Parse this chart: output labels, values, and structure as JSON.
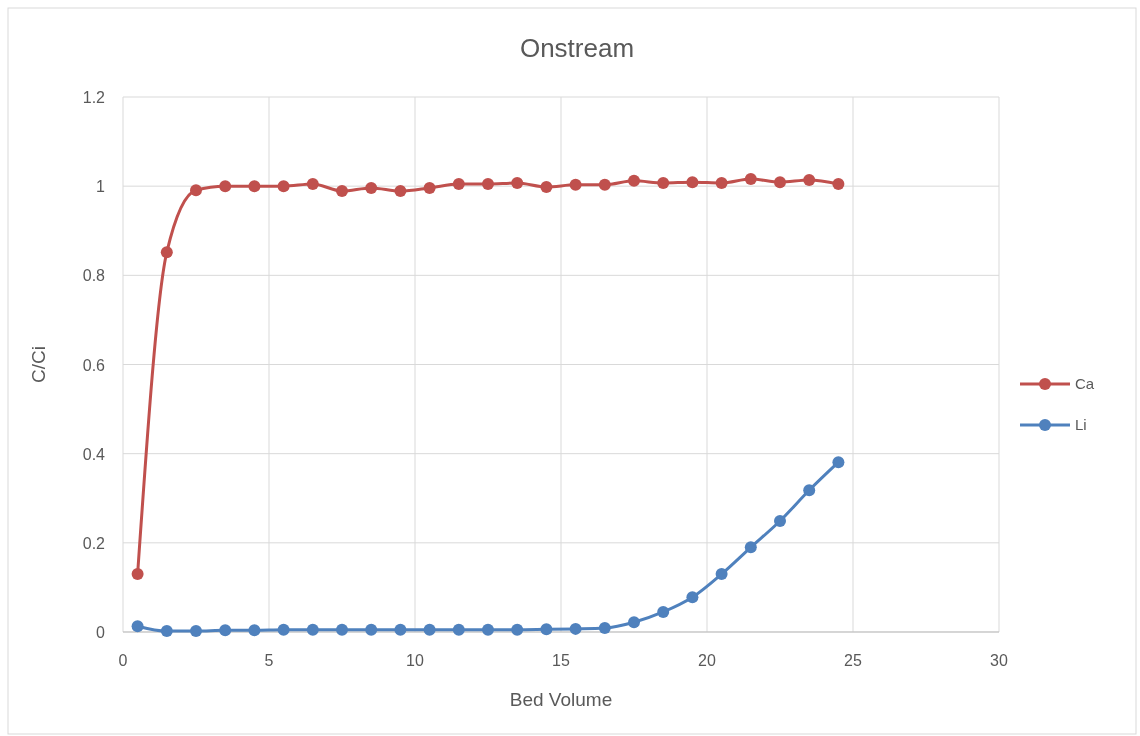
{
  "chart_data": {
    "type": "line",
    "title": "Onstream",
    "xlabel": "Bed Volume",
    "ylabel": "C/Ci",
    "x": [
      0.5,
      1.5,
      2.5,
      3.5,
      4.5,
      5.5,
      6.5,
      7.5,
      8.5,
      9.5,
      10.5,
      11.5,
      12.5,
      13.5,
      14.5,
      15.5,
      16.5,
      17.5,
      18.5,
      19.5,
      20.5,
      21.5,
      22.5,
      23.5,
      24.5
    ],
    "series": [
      {
        "name": "Ca",
        "color": "#c0504d",
        "values": [
          0.13,
          0.852,
          0.991,
          1.0,
          1.0,
          1.0,
          1.005,
          0.989,
          0.996,
          0.989,
          0.996,
          1.005,
          1.005,
          1.007,
          0.998,
          1.003,
          1.003,
          1.012,
          1.007,
          1.009,
          1.007,
          1.016,
          1.009,
          1.014,
          1.005
        ]
      },
      {
        "name": "Li",
        "color": "#4f81bd",
        "values": [
          0.013,
          0.002,
          0.002,
          0.004,
          0.004,
          0.005,
          0.005,
          0.005,
          0.005,
          0.005,
          0.005,
          0.005,
          0.005,
          0.005,
          0.006,
          0.007,
          0.009,
          0.022,
          0.045,
          0.078,
          0.13,
          0.19,
          0.249,
          0.318,
          0.381
        ]
      }
    ],
    "xlim": [
      0,
      30
    ],
    "xticks": [
      0,
      5,
      10,
      15,
      20,
      25,
      30
    ],
    "ylim": [
      0,
      1.2
    ],
    "yticks": [
      0,
      {
        "value": 0.2,
        "label": "0.2"
      },
      {
        "value": 0.4,
        "label": "0.4"
      },
      {
        "value": 0.6,
        "label": "0.6"
      },
      {
        "value": 0.8,
        "label": "0.8"
      },
      1,
      {
        "value": 1.2,
        "label": "1.2"
      }
    ],
    "grid": true,
    "legend": "right",
    "marker": "circle",
    "line_style": "solid"
  }
}
